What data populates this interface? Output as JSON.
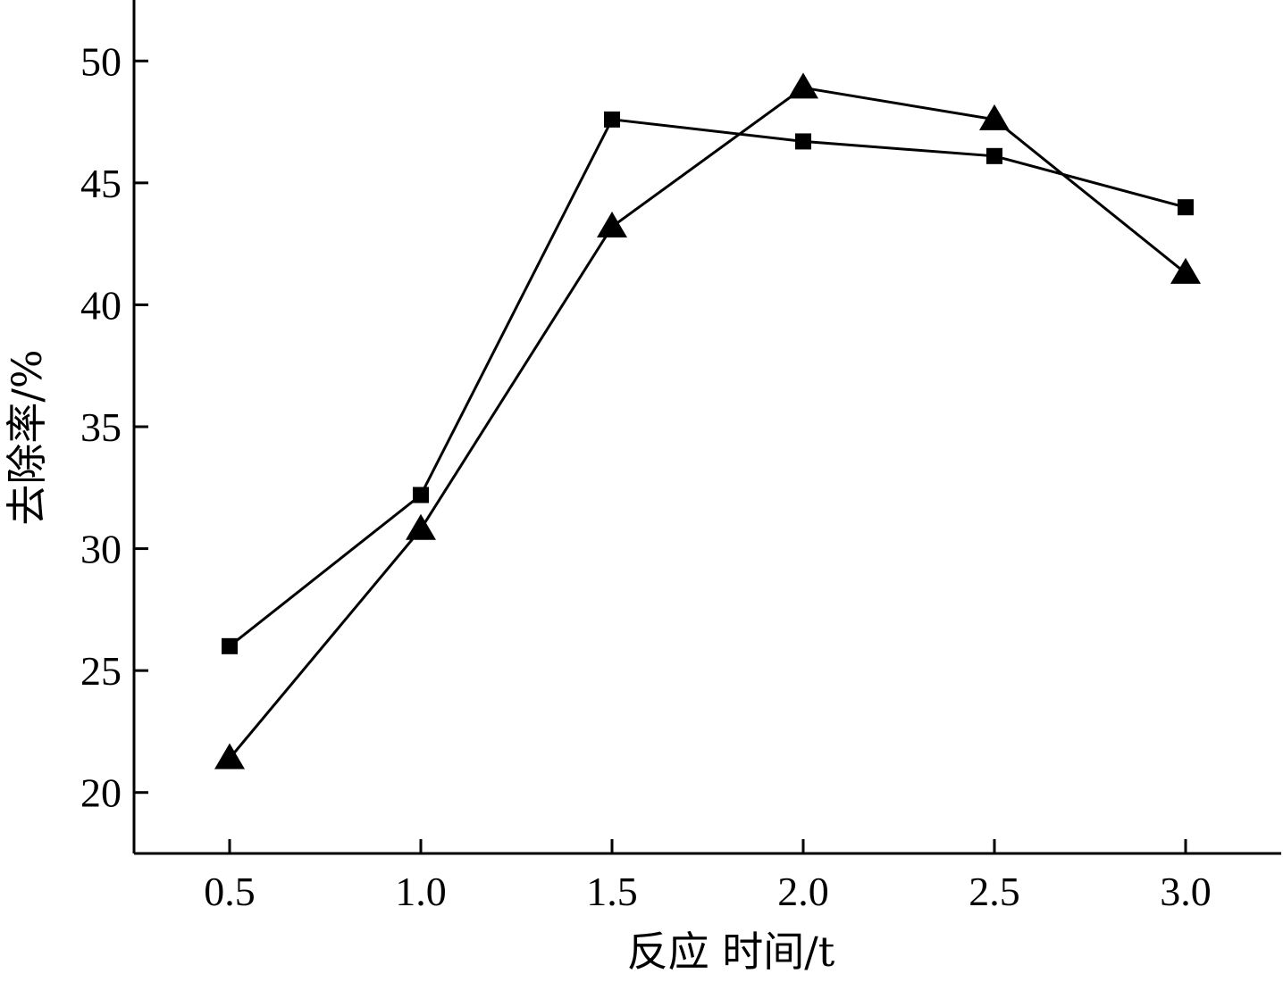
{
  "chart_data": {
    "type": "line",
    "xlabel": "反应 时间/t",
    "ylabel": "去除率/%",
    "x": [
      0.5,
      1.0,
      1.5,
      2.0,
      2.5,
      3.0
    ],
    "x_tick_labels": [
      "0.5",
      "1.0",
      "1.5",
      "2.0",
      "2.5",
      "3.0"
    ],
    "y_ticks": [
      20,
      25,
      30,
      35,
      40,
      45,
      50
    ],
    "y_tick_labels": [
      "20",
      "25",
      "30",
      "35",
      "40",
      "45",
      "50"
    ],
    "xlim": [
      0.25,
      3.25
    ],
    "ylim": [
      17.5,
      52.5
    ],
    "grid": false,
    "legend": "none",
    "series": [
      {
        "marker": "square",
        "color": "#000000",
        "values": [
          26.0,
          32.2,
          47.6,
          46.7,
          46.1,
          44.0
        ]
      },
      {
        "marker": "triangle",
        "color": "#000000",
        "values": [
          21.4,
          30.8,
          43.2,
          48.9,
          47.6,
          41.3
        ]
      }
    ]
  }
}
